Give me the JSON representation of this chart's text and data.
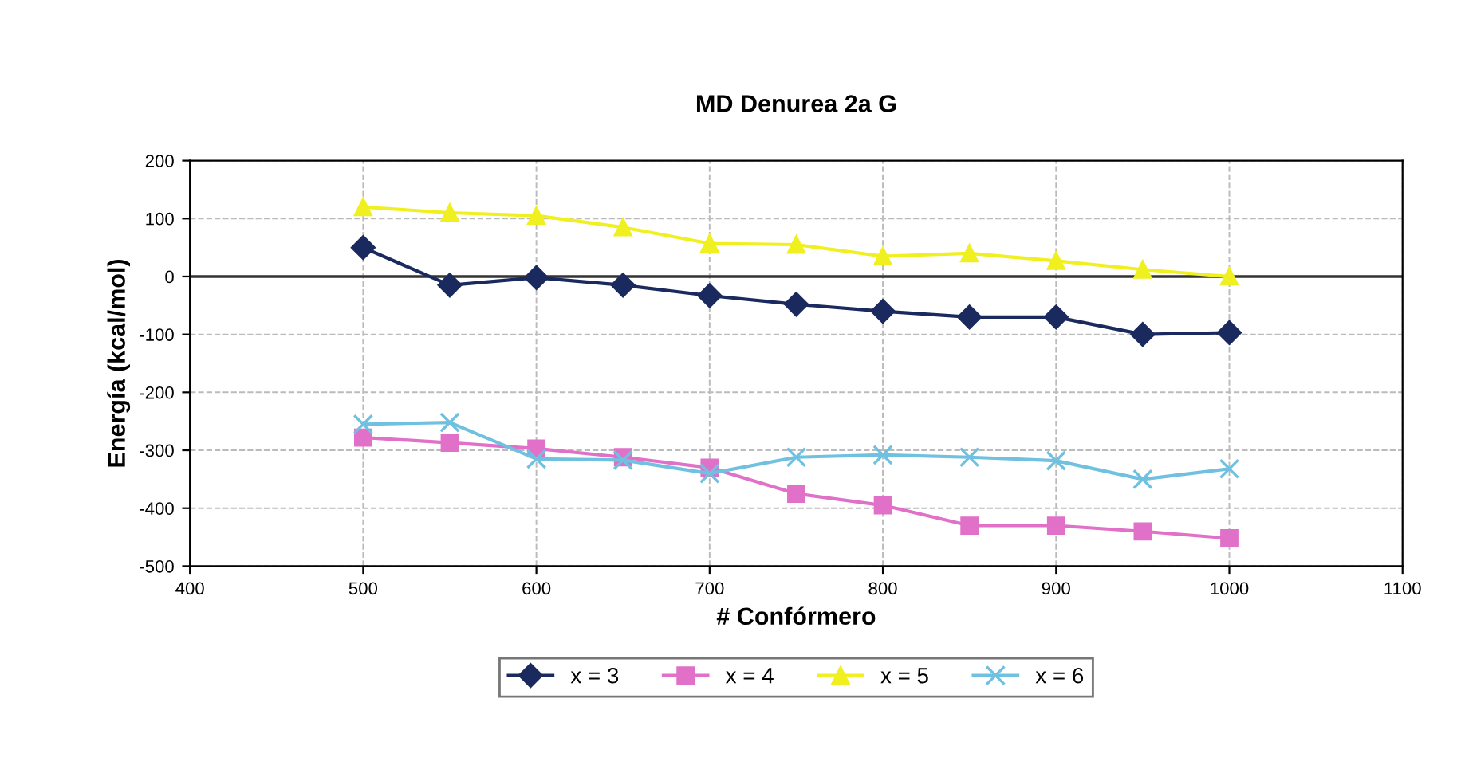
{
  "chart_data": {
    "type": "line",
    "title": "MD Denurea 2a G",
    "xlabel": "# Confórmero",
    "ylabel": "Energía (kcal/mol)",
    "x": [
      500,
      550,
      600,
      650,
      700,
      750,
      800,
      850,
      900,
      950,
      1000
    ],
    "series": [
      {
        "name": "x = 3",
        "color": "#1b2a5e",
        "marker": "diamond",
        "values": [
          50,
          -15,
          -2,
          -15,
          -33,
          -48,
          -60,
          -70,
          -70,
          -100,
          -97
        ]
      },
      {
        "name": "x = 4",
        "color": "#e070c8",
        "marker": "square",
        "values": [
          -278,
          -287,
          -297,
          -312,
          -330,
          -375,
          -395,
          -430,
          -430,
          -440,
          -452
        ]
      },
      {
        "name": "x = 5",
        "color": "#f0f020",
        "marker": "triangle",
        "values": [
          120,
          110,
          105,
          85,
          57,
          55,
          35,
          40,
          27,
          12,
          0
        ]
      },
      {
        "name": "x = 6",
        "color": "#70c0e0",
        "marker": "cross",
        "values": [
          -255,
          -252,
          -315,
          -317,
          -340,
          -312,
          -308,
          -312,
          -318,
          -350,
          -332
        ]
      }
    ],
    "xlim": [
      400,
      1100
    ],
    "xticks": [
      400,
      500,
      600,
      700,
      800,
      900,
      1000,
      1100
    ],
    "ylim": [
      -500,
      200
    ],
    "yticks": [
      -500,
      -400,
      -300,
      -200,
      -100,
      0,
      100,
      200
    ],
    "ref_lines": [
      {
        "axis": "y",
        "value": 0,
        "color": "#333333"
      }
    ],
    "grid": true,
    "legend": "bottom"
  }
}
